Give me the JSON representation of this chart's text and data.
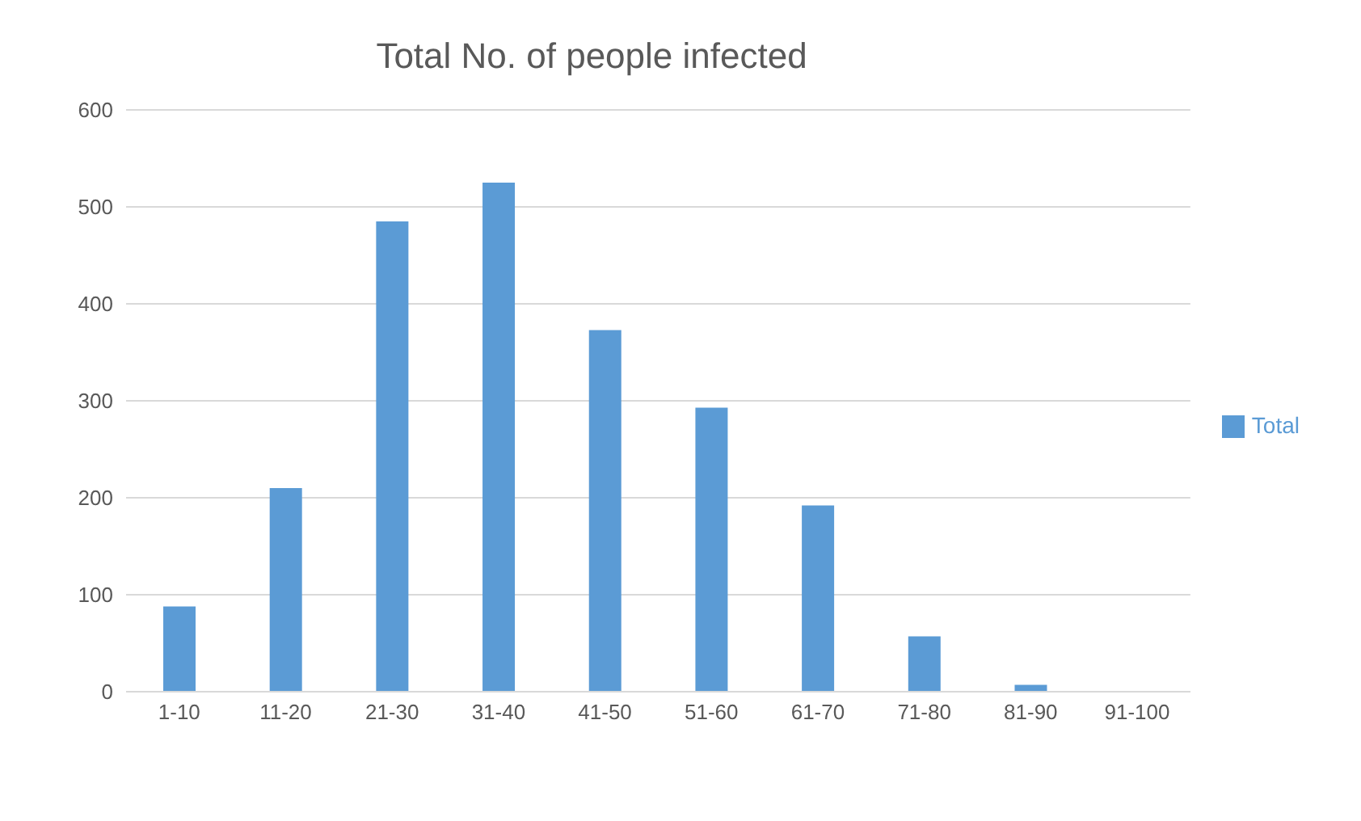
{
  "chart_data": {
    "type": "bar",
    "title": "Total No. of people infected",
    "categories": [
      "1-10",
      "11-20",
      "21-30",
      "31-40",
      "41-50",
      "51-60",
      "61-70",
      "71-80",
      "81-90",
      "91-100"
    ],
    "series": [
      {
        "name": "Total",
        "color": "#5b9bd5",
        "values": [
          88,
          210,
          485,
          525,
          373,
          293,
          192,
          57,
          7,
          0
        ]
      }
    ],
    "ylim": [
      0,
      600
    ],
    "yticks": [
      0,
      100,
      200,
      300,
      400,
      500,
      600
    ],
    "grid": "y",
    "legend": "right"
  }
}
